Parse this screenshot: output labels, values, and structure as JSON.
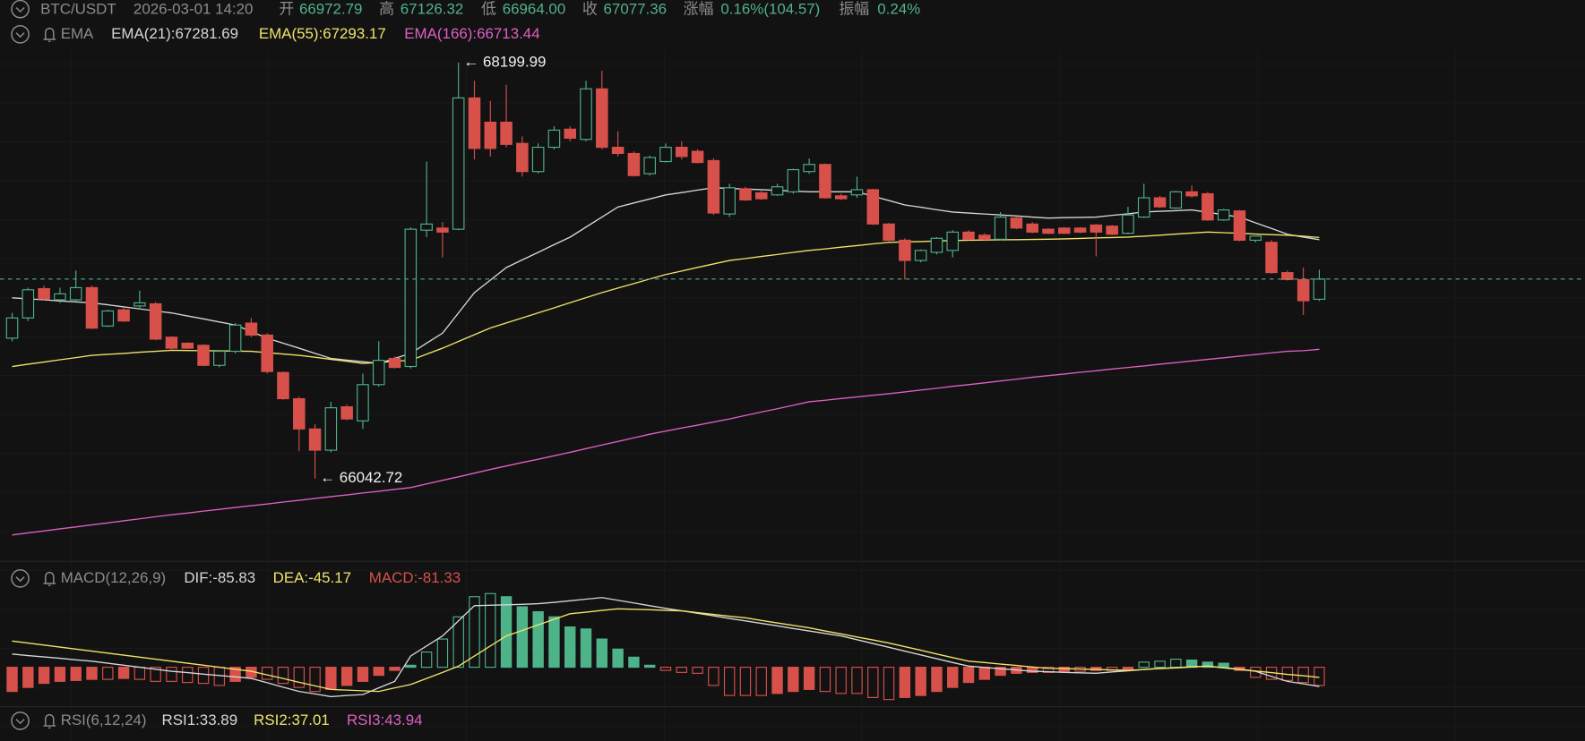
{
  "header": {
    "symbol": "BTC/USDT",
    "time": "2026-03-01 14:20",
    "fields": [
      {
        "label": "开",
        "value": "66972.79"
      },
      {
        "label": "高",
        "value": "67126.32"
      },
      {
        "label": "低",
        "value": "66964.00"
      },
      {
        "label": "收",
        "value": "67077.36"
      },
      {
        "label": "涨幅",
        "value": "0.16%(104.57)"
      },
      {
        "label": "振幅",
        "value": "0.24%"
      }
    ]
  },
  "chart_data": [
    {
      "type": "candlestick",
      "indicator": "EMA",
      "ylim": [
        65619,
        68263
      ],
      "up_color": "#4fb38a",
      "down_color": "#d8504a",
      "annotations": [
        "← 68199.99",
        "← 66042.72"
      ],
      "ohlc": [
        [
          66771,
          66902,
          66755,
          66876
        ],
        [
          66876,
          67033,
          66860,
          67022
        ],
        [
          67028,
          67043,
          66965,
          66975
        ],
        [
          66970,
          67033,
          66954,
          67001
        ],
        [
          66970,
          67122,
          66954,
          67033
        ],
        [
          67033,
          67043,
          66818,
          66823
        ],
        [
          66834,
          66918,
          66829,
          66912
        ],
        [
          66918,
          66928,
          66855,
          66860
        ],
        [
          66938,
          67017,
          66928,
          66954
        ],
        [
          66949,
          66959,
          66760,
          66766
        ],
        [
          66776,
          66781,
          66714,
          66719
        ],
        [
          66745,
          66750,
          66714,
          66719
        ],
        [
          66734,
          66740,
          66625,
          66630
        ],
        [
          66630,
          66708,
          66620,
          66703
        ],
        [
          66703,
          66849,
          66692,
          66839
        ],
        [
          66849,
          66876,
          66776,
          66787
        ],
        [
          66787,
          66797,
          66588,
          66598
        ],
        [
          66593,
          66598,
          66452,
          66457
        ],
        [
          66457,
          66467,
          66185,
          66300
        ],
        [
          66300,
          66326,
          66042.72,
          66190
        ],
        [
          66190,
          66441,
          66179,
          66410
        ],
        [
          66415,
          66426,
          66346,
          66352
        ],
        [
          66342,
          66588,
          66300,
          66530
        ],
        [
          66530,
          66755,
          66520,
          66656
        ],
        [
          66666,
          66676,
          66614,
          66619
        ],
        [
          66624,
          67346,
          66614,
          67336
        ],
        [
          67331,
          67687,
          67295,
          67363
        ],
        [
          67342,
          67373,
          67190,
          67321
        ],
        [
          67336,
          68199.99,
          67331,
          68017
        ],
        [
          68017,
          68106,
          67698,
          67755
        ],
        [
          67891,
          68001,
          67713,
          67755
        ],
        [
          67891,
          68085,
          67761,
          67776
        ],
        [
          67781,
          67818,
          67609,
          67635
        ],
        [
          67635,
          67781,
          67625,
          67761
        ],
        [
          67761,
          67870,
          67750,
          67850
        ],
        [
          67855,
          67870,
          67792,
          67808
        ],
        [
          67802,
          68106,
          67792,
          68064
        ],
        [
          68064,
          68158,
          67750,
          67761
        ],
        [
          67761,
          67844,
          67713,
          67729
        ],
        [
          67729,
          67740,
          67609,
          67614
        ],
        [
          67624,
          67718,
          67614,
          67708
        ],
        [
          67687,
          67781,
          67682,
          67761
        ],
        [
          67761,
          67792,
          67698,
          67713
        ],
        [
          67740,
          67750,
          67677,
          67682
        ],
        [
          67692,
          67703,
          67410,
          67420
        ],
        [
          67415,
          67572,
          67399,
          67551
        ],
        [
          67546,
          67556,
          67483,
          67488
        ],
        [
          67525,
          67535,
          67488,
          67494
        ],
        [
          67514,
          67572,
          67509,
          67556
        ],
        [
          67530,
          67650,
          67520,
          67645
        ],
        [
          67635,
          67703,
          67624,
          67672
        ],
        [
          67672,
          67677,
          67494,
          67499
        ],
        [
          67509,
          67520,
          67488,
          67494
        ],
        [
          67514,
          67609,
          67499,
          67541
        ],
        [
          67541,
          67546,
          67358,
          67363
        ],
        [
          67363,
          67368,
          67274,
          67279
        ],
        [
          67279,
          67289,
          67075,
          67174
        ],
        [
          67174,
          67231,
          67164,
          67226
        ],
        [
          67216,
          67295,
          67205,
          67289
        ],
        [
          67226,
          67331,
          67190,
          67321
        ],
        [
          67321,
          67331,
          67279,
          67284
        ],
        [
          67305,
          67315,
          67274,
          67284
        ],
        [
          67284,
          67425,
          67279,
          67399
        ],
        [
          67394,
          67399,
          67336,
          67342
        ],
        [
          67363,
          67373,
          67315,
          67321
        ],
        [
          67336,
          67342,
          67310,
          67315
        ],
        [
          67342,
          67347,
          67310,
          67315
        ],
        [
          67342,
          67347,
          67315,
          67321
        ],
        [
          67358,
          67363,
          67195,
          67321
        ],
        [
          67352,
          67358,
          67305,
          67310
        ],
        [
          67315,
          67452,
          67310,
          67410
        ],
        [
          67399,
          67572,
          67394,
          67499
        ],
        [
          67499,
          67509,
          67446,
          67452
        ],
        [
          67446,
          67535,
          67441,
          67530
        ],
        [
          67530,
          67562,
          67499,
          67509
        ],
        [
          67520,
          67530,
          67379,
          67384
        ],
        [
          67384,
          67441,
          67379,
          67436
        ],
        [
          67431,
          67436,
          67274,
          67279
        ],
        [
          67279,
          67289,
          67268,
          67300
        ],
        [
          67268,
          67279,
          67106,
          67111
        ],
        [
          67111,
          67122,
          67070,
          67075
        ],
        [
          67075,
          67137,
          66891,
          66965
        ],
        [
          66972.79,
          67126.32,
          66964.0,
          67077.36
        ]
      ],
      "lines": [
        {
          "name": "EMA(21):67281.69",
          "color": "#d6d6d6",
          "values": [
            66980,
            66975,
            66970,
            66964,
            66959,
            66954,
            66944,
            66933,
            66923,
            66912,
            66902,
            66886,
            66871,
            66855,
            66839,
            66805,
            66771,
            66745,
            66719,
            66692,
            66666,
            66657,
            66649,
            66640,
            66666,
            66692,
            66745,
            66797,
            66902,
            67007,
            67072,
            67137,
            67177,
            67216,
            67256,
            67295,
            67347,
            67399,
            67451,
            67472,
            67493,
            67514,
            67526,
            67539,
            67551,
            67548,
            67544,
            67541,
            67537,
            67534,
            67530,
            67530,
            67530,
            67530,
            67507,
            67485,
            67462,
            67450,
            67437,
            67425,
            67420,
            67415,
            67410,
            67405,
            67399,
            67394,
            67396,
            67397,
            67399,
            67408,
            67416,
            67425,
            67429,
            67432,
            67436,
            67424,
            67411,
            67399,
            67369,
            67340,
            67310,
            67295,
            67281.69
          ]
        },
        {
          "name": "EMA(55):67293.17",
          "color": "#f2e36b",
          "values": [
            66624,
            66636,
            66647,
            66659,
            66670,
            66682,
            66687,
            66692,
            66698,
            66703,
            66708,
            66707,
            66706,
            66705,
            66704,
            66703,
            66696,
            66689,
            66682,
            66672,
            66661,
            66651,
            66640,
            66645,
            66651,
            66656,
            66688,
            66719,
            66754,
            66789,
            66824,
            66850,
            66876,
            66902,
            66928,
            66955,
            66981,
            67007,
            67031,
            67054,
            67078,
            67101,
            67119,
            67138,
            67156,
            67174,
            67184,
            67195,
            67205,
            67216,
            67226,
            67234,
            67243,
            67251,
            67260,
            67268,
            67270,
            67272,
            67275,
            67277,
            67279,
            67280,
            67281,
            67282,
            67283,
            67284,
            67286,
            67288,
            67291,
            67293,
            67295,
            67300,
            67305,
            67311,
            67316,
            67321,
            67318,
            67315,
            67311,
            67308,
            67305,
            67300,
            67293.17
          ]
        },
        {
          "name": "EMA(166):66713.44",
          "color": "#e05fc4",
          "values": [
            65750,
            65761,
            65771,
            65782,
            65792,
            65803,
            65813,
            65824,
            65834,
            65845,
            65855,
            65864,
            65874,
            65883,
            65893,
            65902,
            65911,
            65921,
            65930,
            65940,
            65949,
            65958,
            65968,
            65977,
            65987,
            65996,
            66015,
            66034,
            66052,
            66071,
            66090,
            66108,
            66126,
            66143,
            66161,
            66179,
            66198,
            66217,
            66235,
            66254,
            66273,
            66289,
            66305,
            66320,
            66336,
            66352,
            66370,
            66388,
            66405,
            66423,
            66441,
            66449,
            66458,
            66466,
            66475,
            66483,
            66492,
            66502,
            66511,
            66521,
            66530,
            66539,
            66549,
            66558,
            66568,
            66577,
            66585,
            66594,
            66602,
            66611,
            66619,
            66627,
            66636,
            66644,
            66653,
            66661,
            66669,
            66678,
            66686,
            66695,
            66703,
            66706,
            66713.44
          ]
        }
      ]
    },
    {
      "type": "macd",
      "indicator": "MACD(12,26,9)",
      "ylim": [
        -176,
        455
      ],
      "histogram": {
        "name": "MACD:-81.33",
        "up_color": "#4fb38a",
        "down_color": "#d8504a",
        "values": [
          -108,
          -90,
          -72,
          -63,
          -59,
          -54,
          -54,
          -50,
          -54,
          -63,
          -63,
          -68,
          -72,
          -81,
          -63,
          -45,
          -54,
          -72,
          -90,
          -108,
          -99,
          -81,
          -63,
          -36,
          -14,
          9,
          68,
          126,
          225,
          315,
          329,
          315,
          270,
          248,
          225,
          180,
          171,
          126,
          81,
          45,
          9,
          -14,
          -23,
          -27,
          -81,
          -126,
          -126,
          -126,
          -117,
          -108,
          -99,
          -108,
          -117,
          -117,
          -135,
          -144,
          -135,
          -126,
          -108,
          -90,
          -68,
          -54,
          -36,
          -27,
          -23,
          -23,
          -18,
          -18,
          -14,
          -14,
          -9,
          23,
          27,
          36,
          32,
          23,
          18,
          -14,
          -45,
          -54,
          -59,
          -68,
          -81.33
        ]
      },
      "lines": [
        {
          "name": "DIF:-85.83",
          "color": "#d6d6d6",
          "values": [
            59,
            52,
            46,
            40,
            33,
            27,
            18,
            9,
            0,
            -9,
            -18,
            -24,
            -31,
            -37,
            -43,
            -50,
            -69,
            -89,
            -108,
            -119,
            -131,
            -126,
            -122,
            -92,
            -63,
            50,
            95,
            140,
            207,
            275,
            277,
            279,
            281,
            284,
            290,
            297,
            304,
            311,
            299,
            287,
            275,
            263,
            252,
            241,
            230,
            218,
            207,
            196,
            185,
            173,
            162,
            151,
            140,
            123,
            106,
            89,
            72,
            55,
            38,
            21,
            5,
            -1,
            -7,
            -12,
            -18,
            -20,
            -23,
            -25,
            -27,
            -21,
            -16,
            -10,
            -5,
            -2,
            2,
            5,
            -3,
            -10,
            -18,
            -41,
            -63,
            -74,
            -85.83
          ]
        },
        {
          "name": "DEA:-45.17",
          "color": "#f2e36b",
          "values": [
            117,
            108,
            99,
            90,
            81,
            72,
            63,
            54,
            45,
            36,
            27,
            18,
            9,
            0,
            -9,
            -18,
            -34,
            -50,
            -67,
            -83,
            -99,
            -102,
            -105,
            -108,
            -92,
            -77,
            -50,
            -23,
            5,
            50,
            95,
            140,
            164,
            189,
            214,
            239,
            246,
            254,
            261,
            259,
            257,
            254,
            252,
            244,
            236,
            228,
            221,
            209,
            198,
            187,
            176,
            162,
            149,
            135,
            122,
            108,
            92,
            76,
            59,
            43,
            27,
            21,
            14,
            8,
            1,
            -5,
            -6,
            -8,
            -10,
            -12,
            -14,
            -10,
            -6,
            -3,
            1,
            5,
            -2,
            -9,
            -17,
            -24,
            -32,
            -38,
            -45.17
          ]
        }
      ]
    },
    {
      "type": "rsi",
      "indicator": "RSI(6,12,24)",
      "lines": [
        {
          "name": "RSI1:33.89",
          "color": "#d6d6d6"
        },
        {
          "name": "RSI2:37.01",
          "color": "#f2e36b"
        },
        {
          "name": "RSI3:43.94",
          "color": "#e05fc4"
        }
      ]
    }
  ]
}
